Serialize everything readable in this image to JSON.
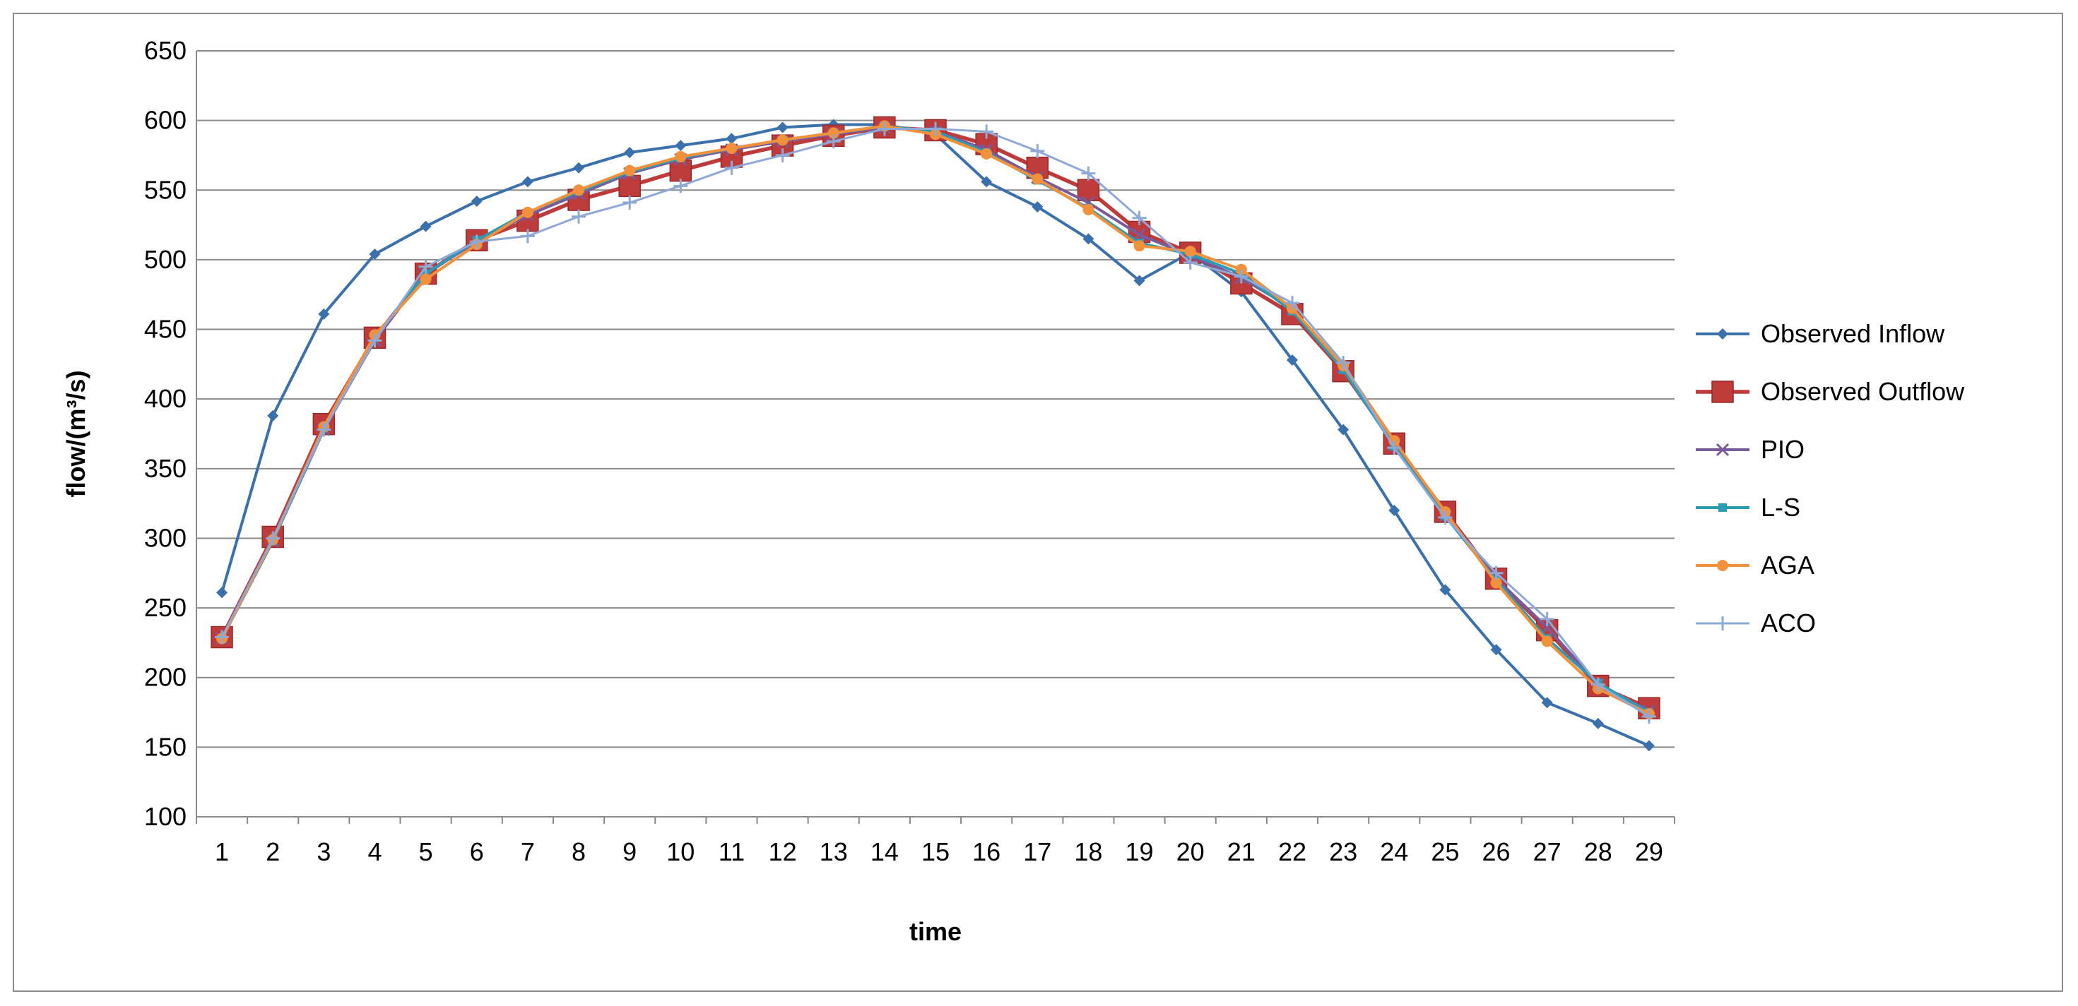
{
  "chart_data": {
    "type": "line",
    "title": "",
    "xlabel": "time",
    "ylabel": "flow/(m³/s)",
    "ylim": [
      100,
      650
    ],
    "yticks": [
      100,
      150,
      200,
      250,
      300,
      350,
      400,
      450,
      500,
      550,
      600,
      650
    ],
    "x": [
      1,
      2,
      3,
      4,
      5,
      6,
      7,
      8,
      9,
      10,
      11,
      12,
      13,
      14,
      15,
      16,
      17,
      18,
      19,
      20,
      21,
      22,
      23,
      24,
      25,
      26,
      27,
      28,
      29
    ],
    "grid": "horizontal",
    "legend_position": "right",
    "series": [
      {
        "name": "Observed Inflow",
        "color": "#3A70AB",
        "marker": "diamond",
        "values": [
          261,
          388,
          461,
          504,
          524,
          542,
          556,
          566,
          577,
          582,
          587,
          595,
          597,
          597,
          590,
          556,
          538,
          515,
          485,
          505,
          477,
          428,
          378,
          320,
          263,
          220,
          182,
          167,
          151
        ]
      },
      {
        "name": "Observed Outflow",
        "color": "#BE3B3B",
        "marker": "square",
        "values": [
          229,
          301,
          382,
          444,
          490,
          514,
          528,
          543,
          553,
          564,
          574,
          582,
          589,
          595,
          593,
          583,
          566,
          550,
          520,
          505,
          483,
          461,
          420,
          368,
          319,
          271,
          234,
          194,
          178
        ]
      },
      {
        "name": "PIO",
        "color": "#7A5A9A",
        "marker": "x",
        "values": [
          228,
          298,
          378,
          442,
          490,
          513,
          532,
          547,
          562,
          572,
          579,
          585,
          590,
          595,
          592,
          579,
          559,
          541,
          518,
          503,
          487,
          465,
          423,
          367,
          316,
          271,
          236,
          195,
          176
        ]
      },
      {
        "name": "L-S",
        "color": "#2E9BB4",
        "marker": "square-small",
        "values": [
          228,
          298,
          379,
          444,
          490,
          514,
          534,
          549,
          563,
          573,
          580,
          586,
          591,
          596,
          592,
          577,
          557,
          537,
          512,
          504,
          490,
          463,
          421,
          366,
          316,
          270,
          228,
          196,
          175
        ]
      },
      {
        "name": "AGA",
        "color": "#F1913C",
        "marker": "circle",
        "values": [
          228,
          299,
          380,
          446,
          486,
          511,
          534,
          550,
          564,
          574,
          580,
          586,
          591,
          596,
          590,
          576,
          558,
          536,
          510,
          506,
          493,
          465,
          424,
          370,
          319,
          268,
          226,
          192,
          174
        ]
      },
      {
        "name": "ACO",
        "color": "#8EA9D6",
        "marker": "plus",
        "values": [
          229,
          300,
          378,
          442,
          495,
          513,
          517,
          531,
          541,
          553,
          566,
          575,
          585,
          594,
          594,
          592,
          578,
          562,
          530,
          498,
          488,
          469,
          426,
          365,
          315,
          275,
          242,
          195,
          172
        ]
      }
    ]
  }
}
